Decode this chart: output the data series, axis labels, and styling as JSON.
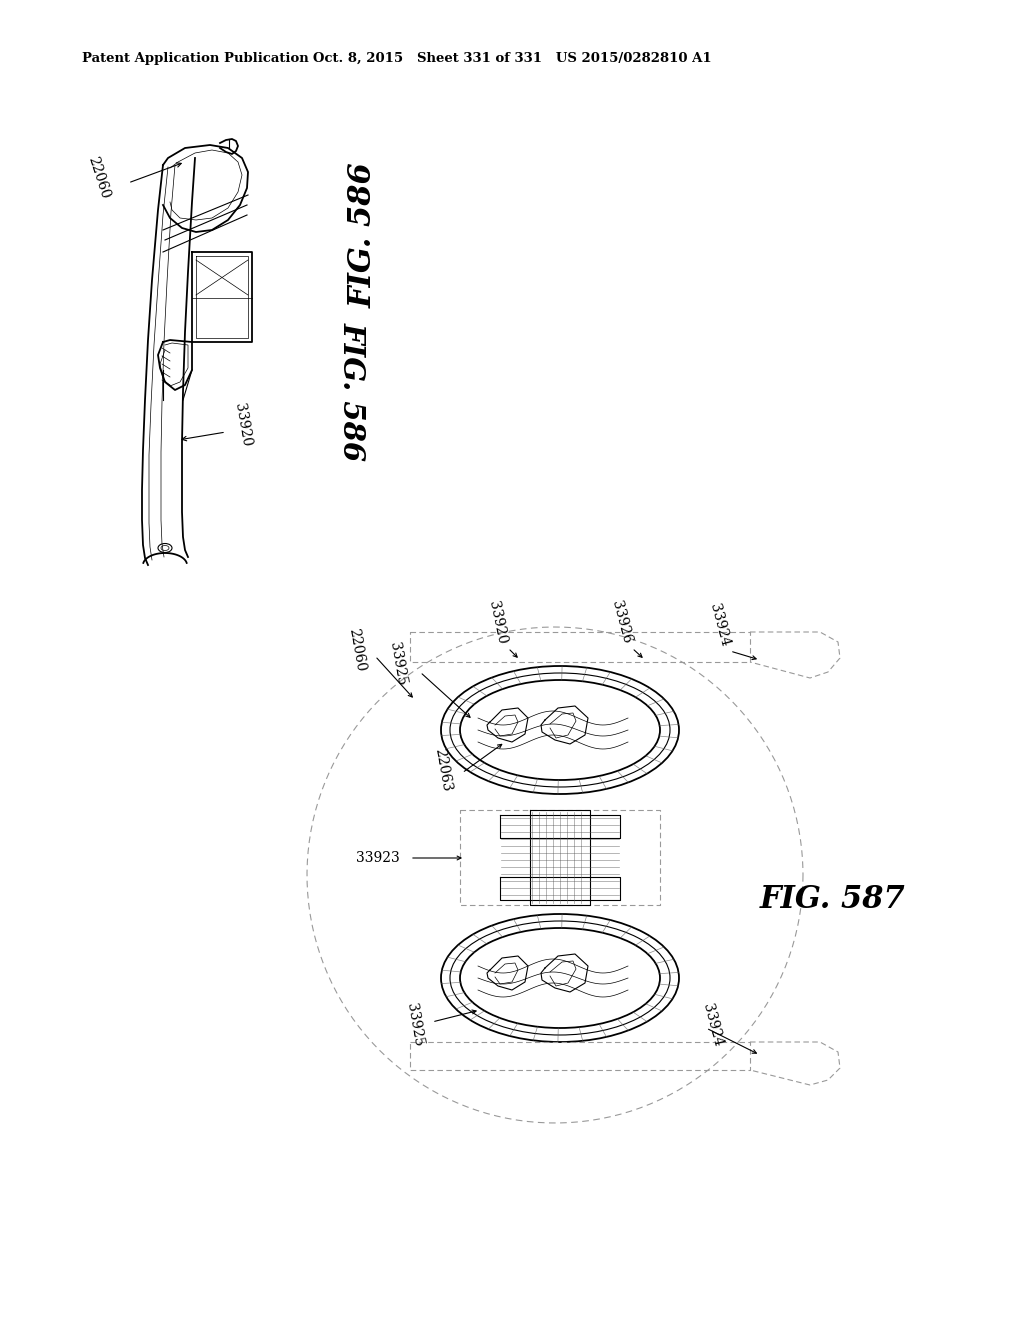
{
  "background_color": "#ffffff",
  "header_left": "Patent Application Publication",
  "header_center": "Oct. 8, 2015   Sheet 331 of 331   US 2015/0282810 A1",
  "fig586_label": "FIG. 586",
  "fig587_label": "FIG. 587",
  "lc": "#000000",
  "gray": "#999999",
  "lightgray": "#cccccc",
  "darkgray": "#555555"
}
